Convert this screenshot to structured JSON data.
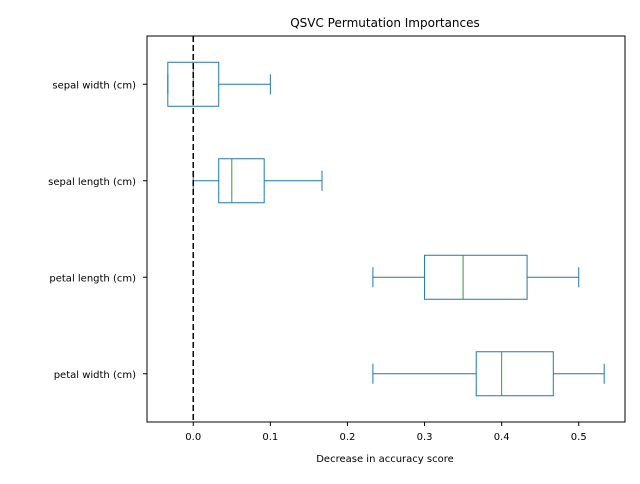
{
  "chart_data": {
    "type": "box",
    "orientation": "horizontal",
    "title": "QSVC Permutation Importances",
    "xlabel": "Decrease in accuracy score",
    "ylabel": "",
    "xlim": [
      -0.06,
      0.56
    ],
    "xticks": [
      0.0,
      0.1,
      0.2,
      0.3,
      0.4,
      0.5
    ],
    "xtick_labels": [
      "0.0",
      "0.1",
      "0.2",
      "0.3",
      "0.4",
      "0.5"
    ],
    "grid": false,
    "reference_line": {
      "x": 0.0,
      "style": "dashed",
      "color": "#000000"
    },
    "box_color": "#1f77b4",
    "median_color": "#2ca02c",
    "categories": [
      "sepal width (cm)",
      "sepal length (cm)",
      "petal length (cm)",
      "petal width (cm)"
    ],
    "boxes": [
      {
        "label": "sepal width (cm)",
        "whisker_low": -0.033,
        "q1": -0.033,
        "median": 0.0,
        "q3": 0.033,
        "whisker_high": 0.1
      },
      {
        "label": "sepal length (cm)",
        "whisker_low": 0.0,
        "q1": 0.033,
        "median": 0.05,
        "q3": 0.092,
        "whisker_high": 0.167
      },
      {
        "label": "petal length (cm)",
        "whisker_low": 0.233,
        "q1": 0.3,
        "median": 0.35,
        "q3": 0.433,
        "whisker_high": 0.5
      },
      {
        "label": "petal width (cm)",
        "whisker_low": 0.233,
        "q1": 0.367,
        "median": 0.4,
        "q3": 0.467,
        "whisker_high": 0.533
      }
    ]
  }
}
